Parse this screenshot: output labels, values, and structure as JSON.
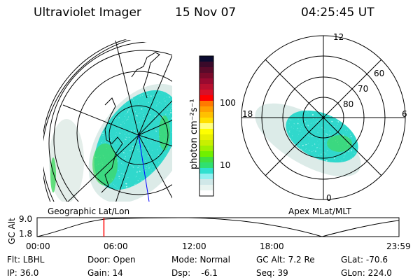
{
  "header": {
    "instrument": "Ultraviolet Imager",
    "date": "15 Nov 07",
    "time": "04:25:45 UT"
  },
  "left_map": {
    "label": "Geographic Lat/Lon"
  },
  "right_map": {
    "label": "Apex MLat/MLT",
    "mlt_labels": [
      "12",
      "18",
      "6",
      "0"
    ],
    "lat_labels": [
      "60",
      "70",
      "80"
    ]
  },
  "colorbar": {
    "unit_label": "photon cm⁻²s⁻¹",
    "tick_labels": [
      "100",
      "10"
    ],
    "colors": [
      "#0b0b30",
      "#3a0a2a",
      "#5a0a2a",
      "#7a0a2a",
      "#9a0a30",
      "#b8102f",
      "#d81028",
      "#ff0000",
      "#ff7a00",
      "#ffa000",
      "#ffc000",
      "#ffe000",
      "#ffff80",
      "#ffff00",
      "#e8f000",
      "#c8f000",
      "#a0f000",
      "#70f000",
      "#40e040",
      "#30e070",
      "#30e0d0",
      "#90f0f0",
      "#d0e8e8",
      "#e8f4f0",
      "#ffffff"
    ]
  },
  "altitude_plot": {
    "ylabel": "GC Alt",
    "y_ticks": [
      "9.0",
      "1.8"
    ],
    "x_ticks": [
      "00:00",
      "06:00",
      "12:00",
      "18:00",
      "23:59"
    ],
    "current_time_hours": 4.43,
    "line_color": "#ff0000"
  },
  "status": {
    "row1": [
      "Flt: LBHL",
      "Door: Open",
      "Mode: Normal",
      "GC Alt: 7.2 Re",
      "GLat: -70.6"
    ],
    "row2": [
      "IP: 36.0",
      "Gain: 14",
      "Dsp:    -6.1",
      "Seq: 39",
      "GLon: 224.0"
    ]
  }
}
